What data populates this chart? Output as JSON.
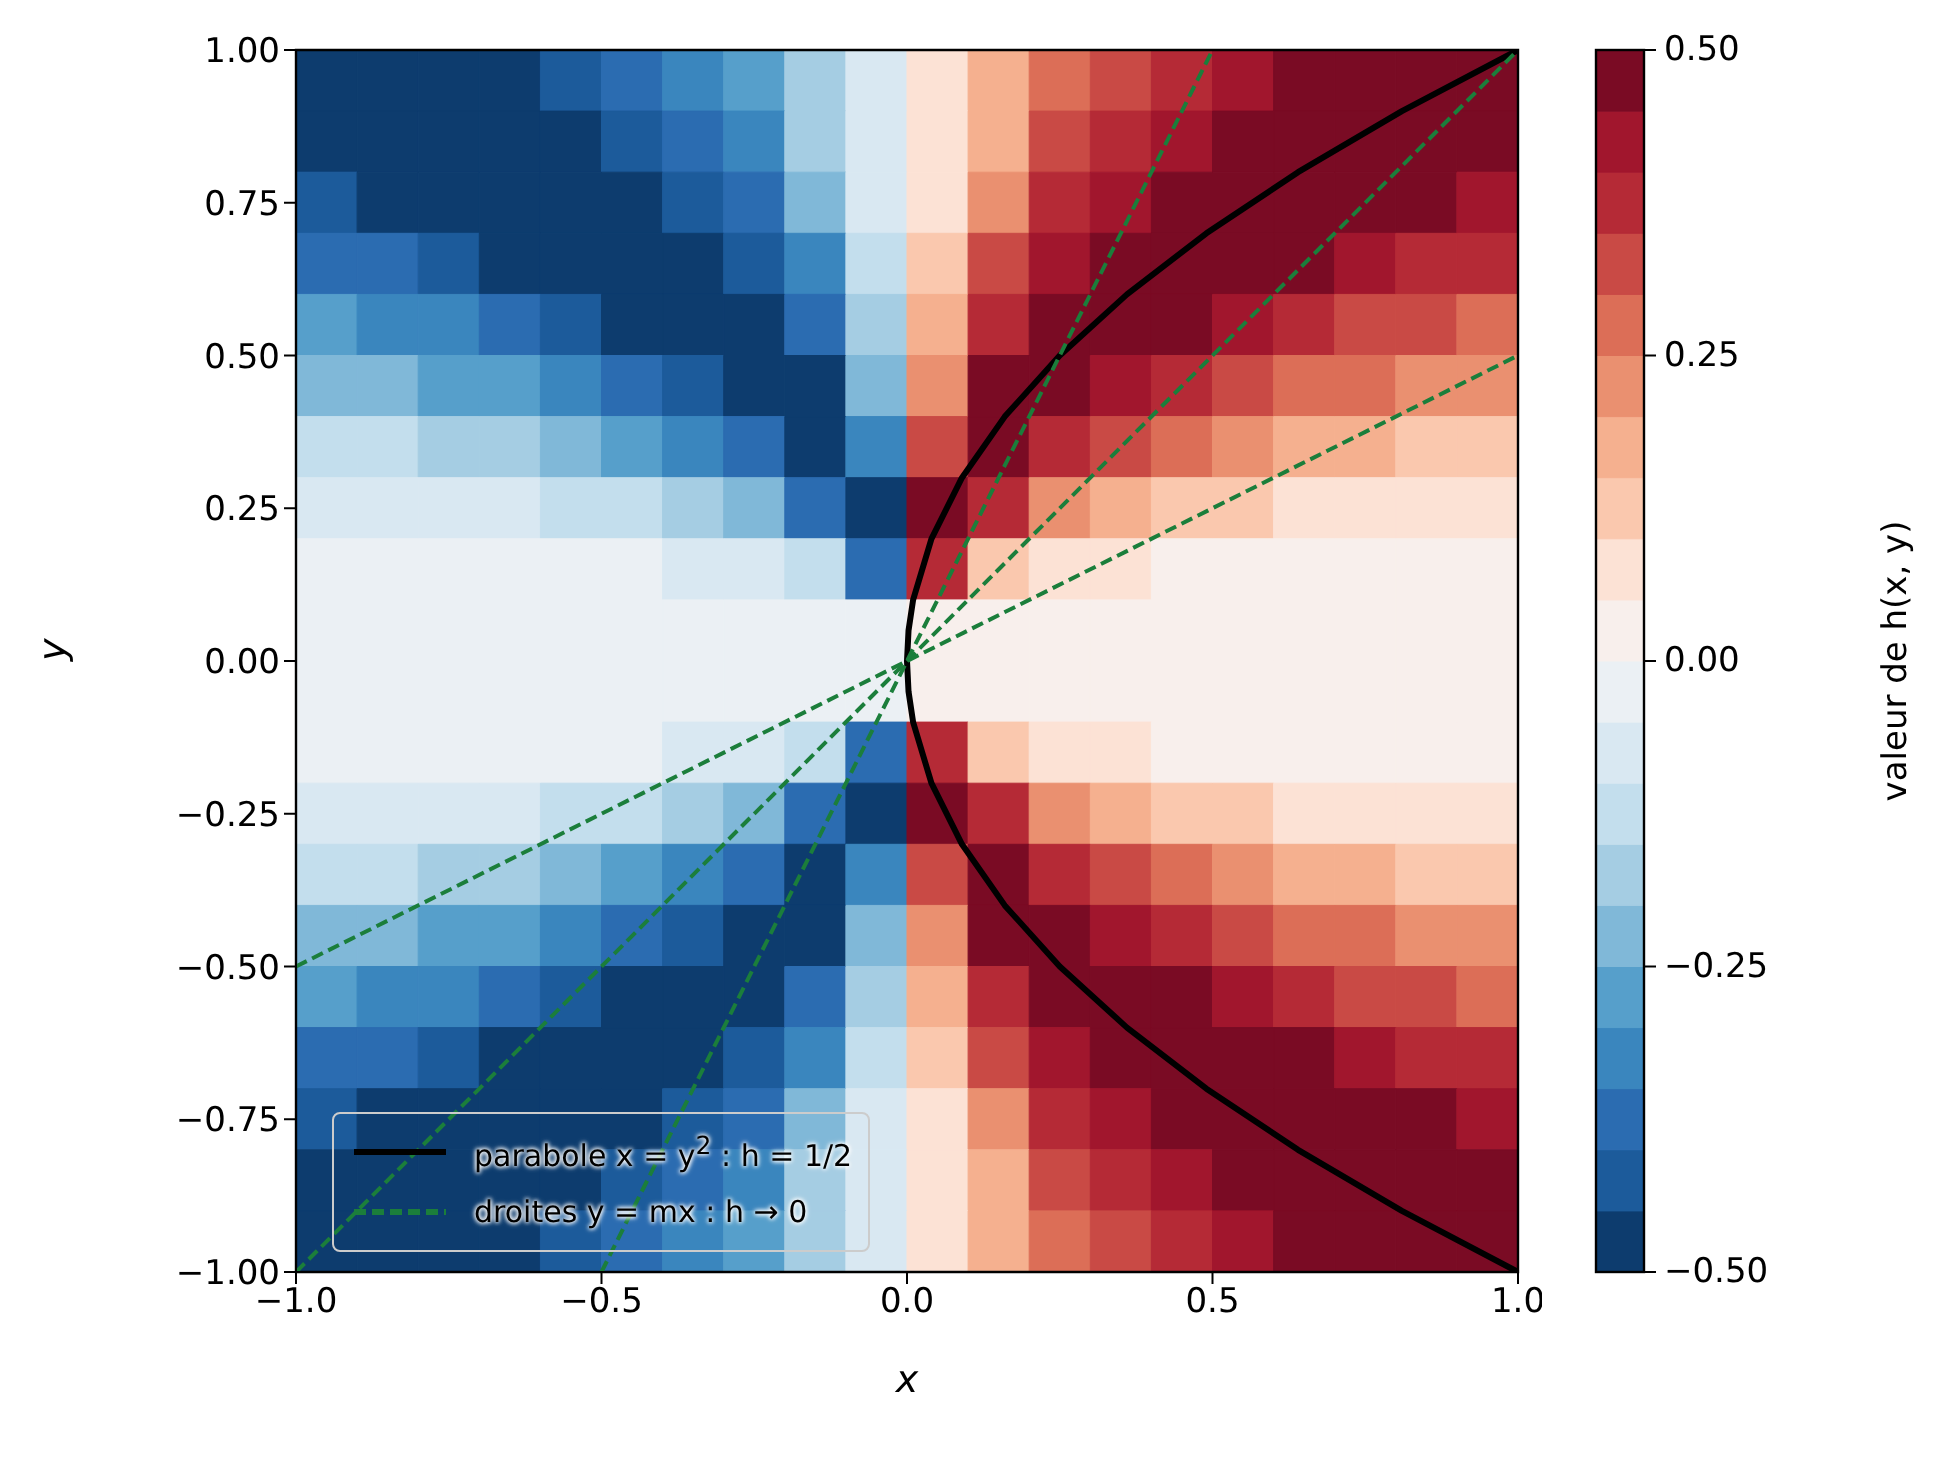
{
  "chart_data": {
    "type": "heatmap",
    "xlabel": "x",
    "ylabel": "y",
    "clabel": "valeur de h(x, y)",
    "x": [
      -0.95,
      -0.85,
      -0.75,
      -0.65,
      -0.55,
      -0.45,
      -0.35,
      -0.25,
      -0.15,
      -0.05,
      0.05,
      0.15,
      0.25,
      0.35,
      0.45,
      0.55,
      0.65,
      0.75,
      0.85,
      0.95
    ],
    "y": [
      0.95,
      0.85,
      0.75,
      0.65,
      0.55,
      0.45,
      0.35,
      0.25,
      0.15,
      0.05,
      -0.05,
      -0.15,
      -0.25,
      -0.35,
      -0.45,
      -0.55,
      -0.65,
      -0.75,
      -0.85,
      -0.95
    ],
    "xlim": [
      -1,
      1
    ],
    "ylim": [
      -1,
      1
    ],
    "xticks": [
      {
        "value": -1,
        "label": "−1.0"
      },
      {
        "value": -0.5,
        "label": "−0.5"
      },
      {
        "value": 0,
        "label": "0.0"
      },
      {
        "value": 0.5,
        "label": "0.5"
      },
      {
        "value": 1,
        "label": "1.0"
      }
    ],
    "yticks": [
      {
        "value": -1,
        "label": "−1.00"
      },
      {
        "value": -0.75,
        "label": "−0.75"
      },
      {
        "value": -0.5,
        "label": "−0.50"
      },
      {
        "value": -0.25,
        "label": "−0.25"
      },
      {
        "value": 0,
        "label": "0.00"
      },
      {
        "value": 0.25,
        "label": "0.25"
      },
      {
        "value": 0.5,
        "label": "0.50"
      },
      {
        "value": 0.75,
        "label": "0.75"
      },
      {
        "value": 1,
        "label": "1.00"
      }
    ],
    "clim": [
      -0.5,
      0.5
    ],
    "cticks": [
      {
        "value": -0.5,
        "label": "−0.50"
      },
      {
        "value": -0.25,
        "label": "−0.25"
      },
      {
        "value": 0,
        "label": "0.00"
      },
      {
        "value": 0.25,
        "label": "0.25"
      },
      {
        "value": 0.5,
        "label": "0.50"
      }
    ],
    "colors": [
      "#0d3c6e",
      "#1c5b9b",
      "#2b6cb1",
      "#3a86be",
      "#569fcb",
      "#80b8d8",
      "#a5cde3",
      "#c3deed",
      "#d9e8f2",
      "#ebf0f4",
      "#f8efec",
      "#fce2d5",
      "#fac8ae",
      "#f5b08f",
      "#ea9070",
      "#dc6e57",
      "#c94a45",
      "#b52a36",
      "#a1162d",
      "#7a0b24"
    ],
    "cells": [
      [
        -0.475,
        -0.475,
        -0.475,
        -0.475,
        -0.425,
        -0.375,
        -0.325,
        -0.275,
        -0.175,
        -0.075,
        0.075,
        0.175,
        0.275,
        0.325,
        0.375,
        0.425,
        0.475,
        0.475,
        0.475,
        0.475
      ],
      [
        -0.475,
        -0.475,
        -0.475,
        -0.475,
        -0.475,
        -0.425,
        -0.375,
        -0.325,
        -0.175,
        -0.075,
        0.075,
        0.175,
        0.325,
        0.375,
        0.425,
        0.475,
        0.475,
        0.475,
        0.475,
        0.475
      ],
      [
        -0.425,
        -0.475,
        -0.475,
        -0.475,
        -0.475,
        -0.475,
        -0.425,
        -0.375,
        -0.225,
        -0.075,
        0.075,
        0.225,
        0.375,
        0.425,
        0.475,
        0.475,
        0.475,
        0.475,
        0.475,
        0.425
      ],
      [
        -0.375,
        -0.375,
        -0.425,
        -0.475,
        -0.475,
        -0.475,
        -0.475,
        -0.425,
        -0.325,
        -0.125,
        0.125,
        0.325,
        0.425,
        0.475,
        0.475,
        0.475,
        0.475,
        0.425,
        0.375,
        0.375
      ],
      [
        -0.275,
        -0.325,
        -0.325,
        -0.375,
        -0.425,
        -0.475,
        -0.475,
        -0.475,
        -0.375,
        -0.175,
        0.175,
        0.375,
        0.475,
        0.475,
        0.475,
        0.425,
        0.375,
        0.325,
        0.325,
        0.275
      ],
      [
        -0.225,
        -0.225,
        -0.275,
        -0.275,
        -0.325,
        -0.375,
        -0.425,
        -0.475,
        -0.475,
        -0.225,
        0.225,
        0.475,
        0.475,
        0.425,
        0.375,
        0.325,
        0.275,
        0.275,
        0.225,
        0.225
      ],
      [
        -0.125,
        -0.125,
        -0.175,
        -0.175,
        -0.225,
        -0.275,
        -0.325,
        -0.375,
        -0.475,
        -0.325,
        0.325,
        0.475,
        0.375,
        0.325,
        0.275,
        0.225,
        0.175,
        0.175,
        0.125,
        0.125
      ],
      [
        -0.075,
        -0.075,
        -0.075,
        -0.075,
        -0.125,
        -0.125,
        -0.175,
        -0.225,
        -0.375,
        -0.475,
        0.475,
        0.375,
        0.225,
        0.175,
        0.125,
        0.125,
        0.075,
        0.075,
        0.075,
        0.075
      ],
      [
        -0.025,
        -0.025,
        -0.025,
        -0.025,
        -0.025,
        -0.025,
        -0.075,
        -0.075,
        -0.125,
        -0.375,
        0.375,
        0.125,
        0.075,
        0.075,
        0.025,
        0.025,
        0.025,
        0.025,
        0.025,
        0.025
      ],
      [
        -0.025,
        -0.025,
        -0.025,
        -0.025,
        -0.025,
        -0.025,
        -0.025,
        -0.025,
        -0.025,
        -0.025,
        0.025,
        0.025,
        0.025,
        0.025,
        0.025,
        0.025,
        0.025,
        0.025,
        0.025,
        0.025
      ],
      [
        -0.025,
        -0.025,
        -0.025,
        -0.025,
        -0.025,
        -0.025,
        -0.025,
        -0.025,
        -0.025,
        -0.025,
        0.025,
        0.025,
        0.025,
        0.025,
        0.025,
        0.025,
        0.025,
        0.025,
        0.025,
        0.025
      ],
      [
        -0.025,
        -0.025,
        -0.025,
        -0.025,
        -0.025,
        -0.025,
        -0.075,
        -0.075,
        -0.125,
        -0.375,
        0.375,
        0.125,
        0.075,
        0.075,
        0.025,
        0.025,
        0.025,
        0.025,
        0.025,
        0.025
      ],
      [
        -0.075,
        -0.075,
        -0.075,
        -0.075,
        -0.125,
        -0.125,
        -0.175,
        -0.225,
        -0.375,
        -0.475,
        0.475,
        0.375,
        0.225,
        0.175,
        0.125,
        0.125,
        0.075,
        0.075,
        0.075,
        0.075
      ],
      [
        -0.125,
        -0.125,
        -0.175,
        -0.175,
        -0.225,
        -0.275,
        -0.325,
        -0.375,
        -0.475,
        -0.325,
        0.325,
        0.475,
        0.375,
        0.325,
        0.275,
        0.225,
        0.175,
        0.175,
        0.125,
        0.125
      ],
      [
        -0.225,
        -0.225,
        -0.275,
        -0.275,
        -0.325,
        -0.375,
        -0.425,
        -0.475,
        -0.475,
        -0.225,
        0.225,
        0.475,
        0.475,
        0.425,
        0.375,
        0.325,
        0.275,
        0.275,
        0.225,
        0.225
      ],
      [
        -0.275,
        -0.325,
        -0.325,
        -0.375,
        -0.425,
        -0.475,
        -0.475,
        -0.475,
        -0.375,
        -0.175,
        0.175,
        0.375,
        0.475,
        0.475,
        0.475,
        0.425,
        0.375,
        0.325,
        0.325,
        0.275
      ],
      [
        -0.375,
        -0.375,
        -0.425,
        -0.475,
        -0.475,
        -0.475,
        -0.475,
        -0.425,
        -0.325,
        -0.125,
        0.125,
        0.325,
        0.425,
        0.475,
        0.475,
        0.475,
        0.475,
        0.425,
        0.375,
        0.375
      ],
      [
        -0.425,
        -0.475,
        -0.475,
        -0.475,
        -0.475,
        -0.475,
        -0.425,
        -0.375,
        -0.225,
        -0.075,
        0.075,
        0.225,
        0.375,
        0.425,
        0.475,
        0.475,
        0.475,
        0.475,
        0.475,
        0.425
      ],
      [
        -0.475,
        -0.475,
        -0.475,
        -0.475,
        -0.475,
        -0.425,
        -0.375,
        -0.325,
        -0.175,
        -0.075,
        0.075,
        0.175,
        0.325,
        0.375,
        0.425,
        0.475,
        0.475,
        0.475,
        0.475,
        0.475
      ],
      [
        -0.475,
        -0.475,
        -0.475,
        -0.475,
        -0.425,
        -0.375,
        -0.325,
        -0.275,
        -0.175,
        -0.075,
        0.075,
        0.175,
        0.275,
        0.325,
        0.375,
        0.425,
        0.475,
        0.475,
        0.475,
        0.475
      ]
    ],
    "series": [
      {
        "type": "line",
        "name": "parabole x = y$^{2}$ : h = 1/2",
        "color": "#000000",
        "line_style": "solid",
        "x": [
          1,
          0.81,
          0.64,
          0.49,
          0.36,
          0.25,
          0.16,
          0.09,
          0.04,
          0.01,
          0.0025,
          0,
          0.0025,
          0.01,
          0.04,
          0.09,
          0.16,
          0.25,
          0.36,
          0.49,
          0.64,
          0.81,
          1
        ],
        "values": [
          -1,
          -0.9,
          -0.8,
          -0.7,
          -0.6,
          -0.5,
          -0.4,
          -0.3,
          -0.2,
          -0.1,
          -0.05,
          0,
          0.05,
          0.1,
          0.2,
          0.3,
          0.4,
          0.5,
          0.6,
          0.7,
          0.8,
          0.9,
          1
        ]
      },
      {
        "type": "line",
        "name": "droites y = mx : h → 0",
        "color": "#1b7e3b",
        "line_style": "dashed",
        "x": [
          -1,
          1
        ],
        "values": [
          -0.5,
          0.5
        ]
      },
      {
        "type": "line",
        "color": "#1b7e3b",
        "line_style": "dashed",
        "x": [
          -1,
          1
        ],
        "values": [
          -1,
          1
        ]
      },
      {
        "type": "line",
        "color": "#1b7e3b",
        "line_style": "dashed",
        "x": [
          -0.5,
          0.5
        ],
        "values": [
          -1,
          1
        ]
      }
    ],
    "legend": "lower left"
  }
}
